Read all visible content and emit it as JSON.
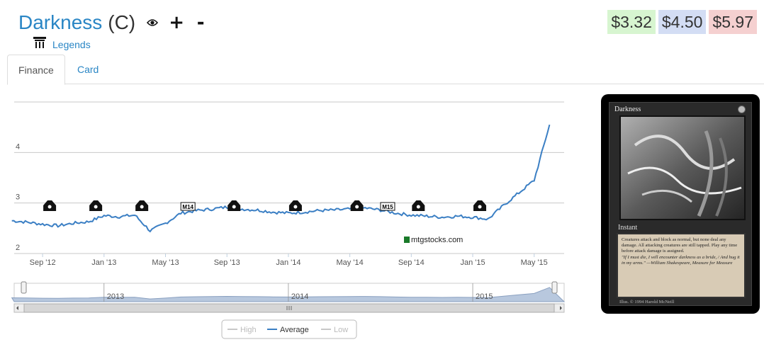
{
  "card": {
    "name": "Darkness",
    "rarity": "(C)",
    "set": "Legends",
    "icons": [
      "eye-icon",
      "plus-icon",
      "minus-icon"
    ]
  },
  "prices": [
    {
      "label": "$3.32",
      "color": "#d7f5d0"
    },
    {
      "label": "$4.50",
      "color": "#d3ddf4"
    },
    {
      "label": "$5.97",
      "color": "#f5d0d0"
    }
  ],
  "tabs": [
    {
      "label": "Finance",
      "active": true
    },
    {
      "label": "Card",
      "active": false
    }
  ],
  "watermark": "mtgstocks.com",
  "card_image": {
    "title": "Darkness",
    "type": "Instant",
    "rules_text": "Creatures attack and block as normal, but none deal any damage. All attacking creatures are still tapped. Play any time before attack damage is assigned.",
    "flavor_text": "\"If I must die, I will encounter darkness as a bride, / And hug it in my arms.\" —William Shakespeare, Measure for Measure",
    "artist": "Illus. © 1994 Harold McNeill"
  },
  "chart_data": {
    "type": "line",
    "title": "",
    "xlabel": "",
    "ylabel": "",
    "ylim": [
      2,
      5
    ],
    "yticks": [
      2,
      3,
      4
    ],
    "xticks": [
      "Sep '12",
      "Jan '13",
      "May '13",
      "Sep '13",
      "Jan '14",
      "May '14",
      "Sep '14",
      "Jan '15",
      "May '15"
    ],
    "x_range": [
      "2012-07",
      "2015-06"
    ],
    "grid": true,
    "legend_position": "bottom",
    "series": [
      {
        "name": "High",
        "visible": false,
        "color": "#c8c8c8",
        "values": []
      },
      {
        "name": "Average",
        "visible": true,
        "color": "#3b7fc4",
        "x": [
          "2012-07",
          "2012-08",
          "2012-09",
          "2012-10",
          "2012-11",
          "2012-12",
          "2013-01",
          "2013-02",
          "2013-03",
          "2013-04",
          "2013-05",
          "2013-06",
          "2013-07",
          "2013-08",
          "2013-09",
          "2013-10",
          "2013-11",
          "2013-12",
          "2014-01",
          "2014-02",
          "2014-03",
          "2014-04",
          "2014-05",
          "2014-06",
          "2014-07",
          "2014-08",
          "2014-09",
          "2014-10",
          "2014-11",
          "2014-12",
          "2015-01",
          "2015-02",
          "2015-03",
          "2015-04",
          "2015-05",
          "2015-06"
        ],
        "values": [
          2.65,
          2.62,
          2.58,
          2.55,
          2.6,
          2.63,
          2.75,
          2.73,
          2.76,
          2.45,
          2.6,
          2.8,
          2.85,
          2.88,
          2.92,
          2.88,
          2.86,
          2.82,
          2.8,
          2.82,
          2.85,
          2.86,
          2.88,
          2.9,
          2.86,
          2.8,
          2.76,
          2.74,
          2.72,
          2.74,
          2.72,
          2.68,
          2.95,
          3.2,
          3.45,
          4.55
        ]
      },
      {
        "name": "Low",
        "visible": false,
        "color": "#c8c8c8",
        "values": []
      }
    ],
    "set_symbols": [
      {
        "x": "2012-09",
        "name": "m13-set-icon"
      },
      {
        "x": "2012-12",
        "name": "rtr-set-icon"
      },
      {
        "x": "2013-03",
        "name": "gtc-set-icon"
      },
      {
        "x": "2013-06",
        "name": "m14-set-icon",
        "label": "M14"
      },
      {
        "x": "2013-09",
        "name": "ths-set-icon"
      },
      {
        "x": "2014-01",
        "name": "bng-set-icon"
      },
      {
        "x": "2014-05",
        "name": "jou-set-icon"
      },
      {
        "x": "2014-07",
        "name": "m15-set-icon",
        "label": "M15"
      },
      {
        "x": "2014-09",
        "name": "ktk-set-icon"
      },
      {
        "x": "2015-01",
        "name": "frf-set-icon"
      }
    ],
    "navigator_labels": [
      "2013",
      "2014",
      "2015"
    ]
  }
}
